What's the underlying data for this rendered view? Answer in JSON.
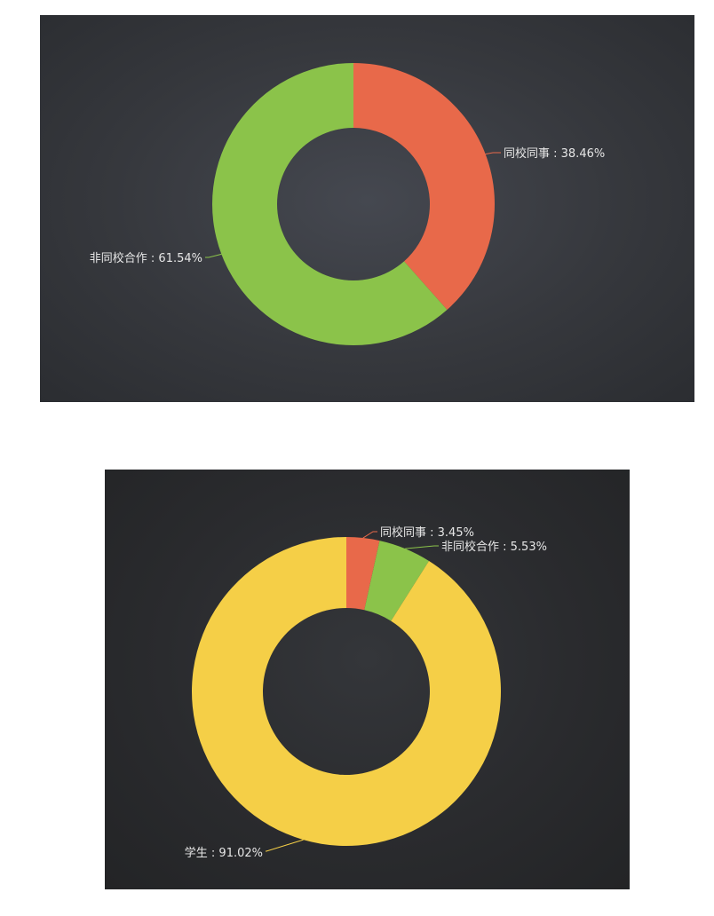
{
  "chart_data": [
    {
      "type": "pie",
      "donut": true,
      "categories": [
        "同校同事",
        "非同校合作"
      ],
      "values": [
        38.46,
        61.54
      ],
      "labels": [
        "同校同事 : 38.46%",
        "非同校合作 : 61.54%"
      ],
      "colors": [
        "#e8694a",
        "#8bc34a"
      ]
    },
    {
      "type": "pie",
      "donut": true,
      "categories": [
        "同校同事",
        "非同校合作",
        "学生"
      ],
      "values": [
        3.45,
        5.53,
        91.02
      ],
      "labels": [
        "同校同事 : 3.45%",
        "非同校合作 : 5.53%",
        "学生 : 91.02%"
      ],
      "colors": [
        "#e8694a",
        "#8bc34a",
        "#f5cf47"
      ]
    }
  ]
}
